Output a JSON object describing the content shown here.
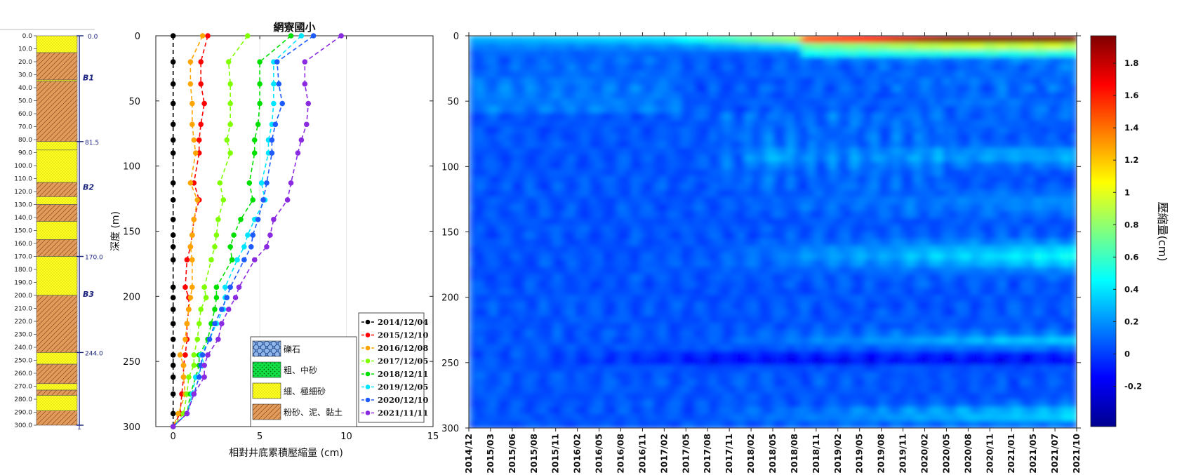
{
  "chart_data": [
    {
      "type": "table",
      "name": "stratigraphic-column",
      "depth_ticks": [
        "0.0",
        "10.0",
        "20.0",
        "30.0",
        "40.0",
        "50.0",
        "60.0",
        "70.0",
        "80.0",
        "90.0",
        "100.0",
        "110.0",
        "120.0",
        "130.0",
        "140.0",
        "150.0",
        "160.0",
        "170.0",
        "180.0",
        "190.0",
        "200.0",
        "210.0",
        "220.0",
        "230.0",
        "240.0",
        "250.0",
        "260.0",
        "270.0",
        "280.0",
        "290.0",
        "300.0"
      ],
      "layers": [
        {
          "top": 0,
          "bottom": 13,
          "lithology": "fine"
        },
        {
          "top": 13,
          "bottom": 34,
          "lithology": "silt"
        },
        {
          "top": 34,
          "bottom": 35,
          "lithology": "fine"
        },
        {
          "top": 35,
          "bottom": 81.5,
          "lithology": "silt"
        },
        {
          "top": 81.5,
          "bottom": 88,
          "lithology": "fine"
        },
        {
          "top": 88,
          "bottom": 113,
          "lithology": "fine"
        },
        {
          "top": 113,
          "bottom": 124,
          "lithology": "silt"
        },
        {
          "top": 124,
          "bottom": 130,
          "lithology": "fine"
        },
        {
          "top": 130,
          "bottom": 143,
          "lithology": "silt"
        },
        {
          "top": 143,
          "bottom": 157,
          "lithology": "fine"
        },
        {
          "top": 157,
          "bottom": 170,
          "lithology": "silt"
        },
        {
          "top": 170,
          "bottom": 200,
          "lithology": "fine"
        },
        {
          "top": 200,
          "bottom": 244,
          "lithology": "silt"
        },
        {
          "top": 244,
          "bottom": 253,
          "lithology": "fine"
        },
        {
          "top": 253,
          "bottom": 268,
          "lithology": "silt"
        },
        {
          "top": 268,
          "bottom": 273,
          "lithology": "fine"
        },
        {
          "top": 273,
          "bottom": 277,
          "lithology": "silt"
        },
        {
          "top": 277,
          "bottom": 289,
          "lithology": "fine"
        },
        {
          "top": 289,
          "bottom": 300,
          "lithology": "silt"
        }
      ],
      "aquifers": [
        {
          "label": "B1",
          "top": 0,
          "bottom": 81.5,
          "top_label": "0.0",
          "bottom_label": "81.5"
        },
        {
          "label": "B2",
          "top": 81.5,
          "bottom": 170,
          "bottom_label": "170.0"
        },
        {
          "label": "B3",
          "top": 170,
          "bottom": 244,
          "bottom_label": "244.0"
        }
      ],
      "bottom_marker": "1"
    },
    {
      "type": "line",
      "title": "網寮國小",
      "xlabel": "相對井底累積壓縮量 (cm)",
      "ylabel": "深度 (m)",
      "xlim": [
        -1,
        15
      ],
      "ylim": [
        300,
        0
      ],
      "x_ticks": [
        "0",
        "5",
        "10",
        "15"
      ],
      "y_ticks": [
        "0",
        "50",
        "100",
        "150",
        "200",
        "250",
        "300"
      ],
      "depths": [
        0,
        20,
        37,
        52,
        68,
        80,
        90,
        113,
        126,
        141,
        153,
        162,
        172,
        193,
        201,
        210,
        221,
        233,
        245,
        253,
        262,
        275,
        290,
        300
      ],
      "series": [
        {
          "name": "2014/12/04",
          "color": "#000000",
          "values": [
            0,
            0,
            0,
            0,
            0,
            0,
            0,
            0,
            0,
            0,
            0,
            0,
            0,
            0,
            0,
            0,
            0,
            0,
            0,
            0,
            0,
            0,
            0,
            0
          ]
        },
        {
          "name": "2015/12/10",
          "color": "#ff0000",
          "values": [
            2.0,
            1.6,
            1.6,
            1.8,
            1.6,
            1.5,
            1.5,
            1.2,
            1.5,
            1.2,
            1.1,
            1.0,
            0.8,
            0.7,
            0.9,
            0.9,
            0.8,
            0.8,
            0.7,
            0.6,
            0.6,
            0.5,
            0.4,
            0
          ]
        },
        {
          "name": "2016/12/08",
          "color": "#ffa500",
          "values": [
            1.7,
            1.0,
            1.0,
            1.1,
            1.1,
            1.2,
            1.3,
            1.0,
            1.4,
            1.2,
            1.1,
            1.0,
            1.1,
            1.1,
            1.0,
            0.9,
            0.8,
            0.7,
            0.4,
            0.6,
            0.6,
            0.7,
            0.3,
            0
          ]
        },
        {
          "name": "2017/12/05",
          "color": "#7fff00",
          "values": [
            4.3,
            3.2,
            3.3,
            3.3,
            3.3,
            3.1,
            3.3,
            2.7,
            2.9,
            2.6,
            2.5,
            2.4,
            2.2,
            1.8,
            1.9,
            1.6,
            1.5,
            1.4,
            1.2,
            1.2,
            0.9,
            0.8,
            0.6,
            0
          ]
        },
        {
          "name": "2018/12/11",
          "color": "#00e000",
          "values": [
            6.8,
            5.0,
            5.0,
            5.0,
            4.9,
            4.7,
            4.7,
            4.4,
            4.6,
            3.9,
            3.5,
            3.3,
            3.4,
            2.5,
            2.5,
            2.4,
            2.2,
            2.0,
            1.5,
            1.5,
            1.3,
            1.0,
            0.8,
            0
          ]
        },
        {
          "name": "2019/12/05",
          "color": "#00e5ff",
          "values": [
            7.4,
            5.8,
            5.8,
            5.8,
            5.7,
            5.5,
            5.5,
            5.1,
            5.3,
            4.7,
            4.3,
            4.1,
            3.7,
            3.0,
            3.0,
            2.9,
            2.5,
            2.1,
            1.6,
            1.8,
            1.3,
            1.1,
            0.8,
            0
          ]
        },
        {
          "name": "2020/12/10",
          "color": "#1e5bff",
          "values": [
            8.1,
            6.0,
            6.1,
            6.3,
            5.9,
            5.7,
            5.7,
            5.4,
            5.2,
            4.9,
            4.6,
            4.5,
            4.1,
            3.3,
            3.1,
            2.8,
            2.4,
            2.1,
            1.7,
            1.6,
            1.5,
            1.2,
            0.8,
            0
          ]
        },
        {
          "name": "2021/11/11",
          "color": "#8a2be2",
          "values": [
            9.7,
            7.6,
            7.6,
            7.8,
            7.7,
            7.4,
            7.2,
            6.8,
            6.6,
            5.8,
            5.6,
            5.4,
            4.7,
            3.8,
            3.6,
            3.2,
            2.8,
            2.6,
            2.0,
            1.8,
            1.8,
            1.2,
            0.8,
            0
          ]
        }
      ],
      "legend_location": "lower-right",
      "lithology_legend": [
        {
          "key": "gravel",
          "label": "礫石"
        },
        {
          "key": "coarse",
          "label": "粗、中砂"
        },
        {
          "key": "fine",
          "label": "細、極細砂"
        },
        {
          "key": "silt",
          "label": "粉砂、泥、黏土"
        }
      ]
    },
    {
      "type": "heatmap",
      "xlim": [
        "2014/12",
        "2021/10"
      ],
      "ylim": [
        300,
        0
      ],
      "x_ticks": [
        "2014/12",
        "2015/03",
        "2015/06",
        "2015/08",
        "2015/11",
        "2016/02",
        "2016/05",
        "2016/08",
        "2016/11",
        "2017/02",
        "2017/05",
        "2017/08",
        "2017/11",
        "2018/02",
        "2018/05",
        "2018/08",
        "2018/11",
        "2019/02",
        "2019/05",
        "2019/08",
        "2019/11",
        "2020/02",
        "2020/05",
        "2020/08",
        "2020/11",
        "2021/01",
        "2021/05",
        "2021/07",
        "2021/10"
      ],
      "y_ticks": [
        "0",
        "50",
        "100",
        "150",
        "200",
        "250",
        "300"
      ],
      "colorbar": {
        "label": "壓縮量(cm)",
        "range": [
          -0.45,
          1.97
        ],
        "ticks": [
          "-0.2",
          "0",
          "0.2",
          "0.4",
          "0.6",
          "0.8",
          "1",
          "1.2",
          "1.4",
          "1.6",
          "1.8"
        ],
        "colormap": "jet"
      }
    }
  ]
}
